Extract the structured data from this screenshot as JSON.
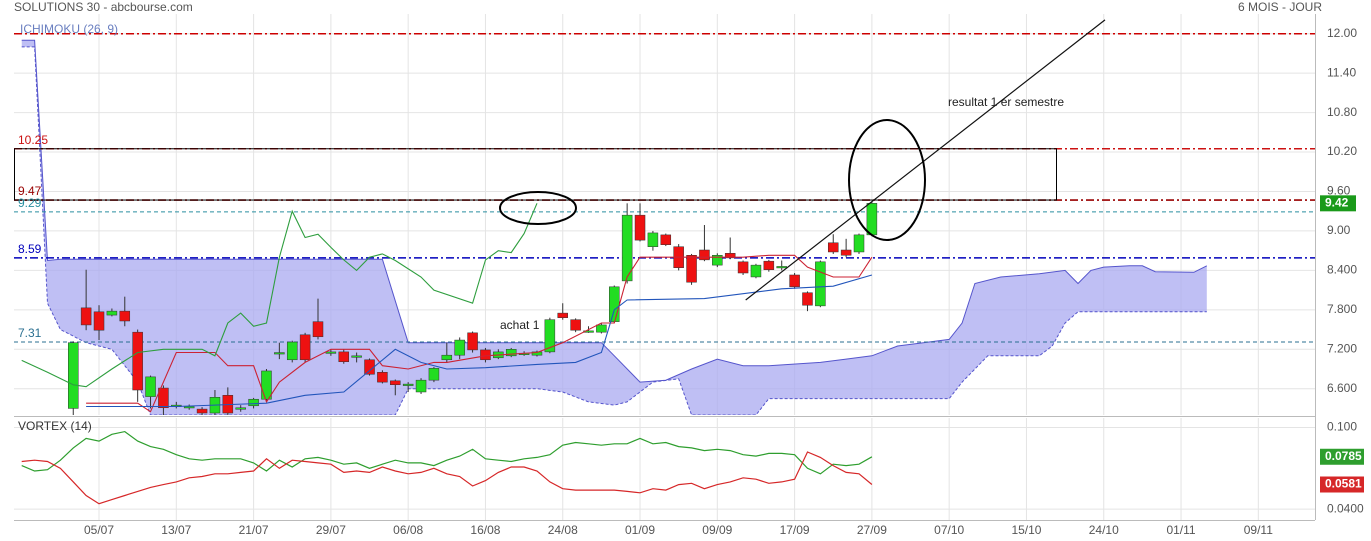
{
  "chart_data": [
    {
      "type": "candlestick",
      "title": "SOLUTIONS 30 - abcbourse.com",
      "subtitle": "6 MOIS - JOUR",
      "indicator": "ICHIMOKU (26, 9)",
      "xlim": [
        -0.6,
        100.4
      ],
      "ylim": [
        6.2,
        12.3
      ],
      "yticks": [
        {
          "value": 12,
          "label": "12.00"
        },
        {
          "value": 11.4,
          "label": "11.40"
        },
        {
          "value": 10.8,
          "label": "10.80"
        },
        {
          "value": 10.2,
          "label": "10.20"
        },
        {
          "value": 9.6,
          "label": "9.60"
        },
        {
          "value": 9,
          "label": "9.00"
        },
        {
          "value": 8.4,
          "label": "8.400"
        },
        {
          "value": 7.8,
          "label": "7.800"
        },
        {
          "value": 7.2,
          "label": "7.200"
        },
        {
          "value": 6.6,
          "label": "6.600"
        }
      ],
      "grid": true,
      "up_color": "#22dd22",
      "down_color": "#ee1111",
      "last_color": "#1a9a1a",
      "candles": {
        "x": [
          4,
          5,
          6,
          7,
          8,
          9,
          10,
          11,
          12,
          13,
          14,
          15,
          16,
          17,
          18,
          19,
          20,
          21,
          22,
          23,
          24,
          25,
          26,
          27,
          28,
          29,
          30,
          31,
          32,
          33,
          34,
          35,
          36,
          37,
          38,
          39,
          40,
          41,
          42,
          43,
          44,
          45,
          46,
          47,
          48,
          49,
          50,
          51,
          52,
          53,
          54,
          55,
          56,
          57,
          58,
          59,
          60,
          61,
          62,
          63,
          64,
          65,
          66
        ],
        "open": [
          6.3,
          7.83,
          7.77,
          7.72,
          7.78,
          7.46,
          6.48,
          6.61,
          6.33,
          6.32,
          6.29,
          6.23,
          6.5,
          6.3,
          6.34,
          6.44,
          7.14,
          7.04,
          7.42,
          7.62,
          7.15,
          7.16,
          7.08,
          7.04,
          6.85,
          6.72,
          6.66,
          6.55,
          6.73,
          7.04,
          7.11,
          7.45,
          7.19,
          7.07,
          7.1,
          7.13,
          7.11,
          7.16,
          7.75,
          7.65,
          7.47,
          7.46,
          7.62,
          8.24,
          9.24,
          8.76,
          8.94,
          8.76,
          8.63,
          8.71,
          8.48,
          8.66,
          8.53,
          8.3,
          8.54,
          8.45,
          8.33,
          8.06,
          7.86,
          8.82,
          8.71,
          8.68,
          8.94
        ],
        "high": [
          7.32,
          8.41,
          7.87,
          7.82,
          8.0,
          7.5,
          6.8,
          6.65,
          6.4,
          6.36,
          6.32,
          6.58,
          6.62,
          6.35,
          6.46,
          6.9,
          7.3,
          7.33,
          7.45,
          7.97,
          7.2,
          7.2,
          7.15,
          7.06,
          6.88,
          6.74,
          6.7,
          6.76,
          6.93,
          7.3,
          7.38,
          7.47,
          7.22,
          7.2,
          7.22,
          7.17,
          7.18,
          7.68,
          7.9,
          7.67,
          7.55,
          7.6,
          8.17,
          9.42,
          9.42,
          9.0,
          8.96,
          8.8,
          8.65,
          9.09,
          8.66,
          8.9,
          8.55,
          8.5,
          8.56,
          8.55,
          8.36,
          8.08,
          8.55,
          8.95,
          8.88,
          8.96,
          9.44
        ],
        "low": [
          6.2,
          7.49,
          7.34,
          7.7,
          7.55,
          6.4,
          6.3,
          6.2,
          6.3,
          6.28,
          6.2,
          6.2,
          6.2,
          6.25,
          6.3,
          6.4,
          7.05,
          7.0,
          7.0,
          7.35,
          7.1,
          6.98,
          7.0,
          6.8,
          6.68,
          6.5,
          6.55,
          6.52,
          6.7,
          7.0,
          7.05,
          7.15,
          7.0,
          7.05,
          7.08,
          7.1,
          7.09,
          7.14,
          7.65,
          7.46,
          7.45,
          7.44,
          7.6,
          8.2,
          8.84,
          8.7,
          8.77,
          8.4,
          8.18,
          8.54,
          8.45,
          8.57,
          8.33,
          8.28,
          8.38,
          8.4,
          8.12,
          7.78,
          7.84,
          8.65,
          8.6,
          8.65,
          8.92
        ],
        "close": [
          7.3,
          7.57,
          7.49,
          7.78,
          7.63,
          6.58,
          6.78,
          6.31,
          6.35,
          6.33,
          6.23,
          6.47,
          6.23,
          6.31,
          6.44,
          6.87,
          7.15,
          7.31,
          7.04,
          7.39,
          7.16,
          7.01,
          7.1,
          6.82,
          6.7,
          6.66,
          6.67,
          6.73,
          6.91,
          7.11,
          7.34,
          7.19,
          7.04,
          7.16,
          7.2,
          7.14,
          7.16,
          7.65,
          7.68,
          7.49,
          7.48,
          7.57,
          8.15,
          9.24,
          8.86,
          8.97,
          8.79,
          8.44,
          8.22,
          8.56,
          8.63,
          8.59,
          8.36,
          8.48,
          8.41,
          8.46,
          8.15,
          7.87,
          8.53,
          8.68,
          8.63,
          8.94,
          9.42
        ]
      },
      "cloud_color": "#aaaaf0",
      "series": [
        {
          "color": "#5555cc",
          "x": [
            0,
            1,
            2,
            3,
            28,
            30,
            45,
            46,
            48,
            50,
            52,
            54,
            56,
            58,
            62,
            64,
            66,
            68,
            70,
            72,
            73,
            74,
            76,
            79,
            81,
            82,
            83,
            84,
            86,
            87,
            88,
            91,
            92
          ],
          "values": [
            11.9,
            11.9,
            8.55,
            8.57,
            8.57,
            7.3,
            7.3,
            7.1,
            6.7,
            6.73,
            6.9,
            7.05,
            6.95,
            6.95,
            7.0,
            7.05,
            7.1,
            7.25,
            7.3,
            7.35,
            7.6,
            8.2,
            8.3,
            8.35,
            8.4,
            8.2,
            8.4,
            8.45,
            8.47,
            8.47,
            8.38,
            8.37,
            8.47
          ]
        },
        {
          "color": "#5555cc",
          "x": [
            0,
            1,
            2,
            3,
            5,
            7,
            9,
            10,
            29,
            30,
            40,
            42,
            44,
            46,
            47,
            49,
            51,
            52,
            57,
            58,
            72,
            73,
            74,
            75,
            79,
            80,
            81,
            82,
            92
          ],
          "values": [
            11.8,
            11.8,
            7.9,
            7.5,
            7.3,
            7.2,
            6.7,
            6.2,
            6.2,
            6.6,
            6.6,
            6.55,
            6.4,
            6.35,
            6.4,
            6.7,
            6.75,
            6.2,
            6.2,
            6.45,
            6.45,
            6.7,
            6.9,
            7.1,
            7.1,
            7.25,
            7.6,
            7.77,
            7.77
          ]
        },
        {
          "color": "#cc2233",
          "x": [
            5,
            9,
            10,
            12,
            15,
            16,
            18,
            19,
            20,
            22,
            24,
            27,
            28,
            30,
            32,
            33,
            36,
            40,
            42,
            45,
            46,
            47,
            48,
            53,
            56,
            58,
            60,
            61,
            63,
            65,
            66
          ],
          "values": [
            6.38,
            6.38,
            6.25,
            7.15,
            7.15,
            6.95,
            6.95,
            6.4,
            6.7,
            7.0,
            7.2,
            7.2,
            6.95,
            6.9,
            7.0,
            7.0,
            7.1,
            7.15,
            7.3,
            7.6,
            7.6,
            8.3,
            8.6,
            8.6,
            8.6,
            8.63,
            8.63,
            8.45,
            8.3,
            8.3,
            8.6
          ]
        },
        {
          "color": "#2255bb",
          "x": [
            5,
            12,
            19,
            22,
            25,
            29,
            31,
            33,
            36,
            40,
            43,
            45,
            46,
            47,
            53,
            59,
            63,
            66
          ],
          "values": [
            6.33,
            6.33,
            6.38,
            6.5,
            6.55,
            7.2,
            7.0,
            6.9,
            6.92,
            6.97,
            7.0,
            7.15,
            7.8,
            7.95,
            7.97,
            8.12,
            8.16,
            8.33
          ]
        },
        {
          "color": "#2e9e3e",
          "x": [
            0,
            2,
            4,
            5,
            7,
            9,
            11,
            14,
            15,
            16,
            17,
            18,
            19,
            20,
            21,
            22,
            23,
            24,
            25,
            26,
            27,
            28,
            29,
            31,
            32,
            35,
            36,
            37,
            38,
            39,
            40
          ],
          "values": [
            7.03,
            6.85,
            6.66,
            6.63,
            6.9,
            7.15,
            7.2,
            7.2,
            7.1,
            7.6,
            7.75,
            7.55,
            7.6,
            8.6,
            9.3,
            8.9,
            8.95,
            8.75,
            8.56,
            8.4,
            8.6,
            8.65,
            8.55,
            8.3,
            8.1,
            7.9,
            8.56,
            8.7,
            8.67,
            8.96,
            9.42
          ]
        }
      ],
      "ceiling": {
        "value": 12,
        "color": "#cc0000"
      },
      "levels": [
        {
          "value": 10.25,
          "color": "#cc1111",
          "style": "dashdot"
        },
        {
          "value": 9.47,
          "color": "#990000",
          "style": "dashdot"
        },
        {
          "value": 9.29,
          "color": "#2a8fa0",
          "style": "dashed"
        },
        {
          "value": 8.59,
          "color": "#0000bb",
          "style": "dashdot"
        },
        {
          "value": 7.31,
          "color": "#2a6f90",
          "style": "dashed"
        }
      ],
      "trendline": {
        "color": "#111111",
        "x": [
          56.2,
          84.1
        ],
        "values": [
          7.95,
          12.21
        ]
      },
      "annotations": [
        "achat 1",
        "resultat 1 er semestre"
      ]
    },
    {
      "type": "line",
      "title": "VORTEX (14)",
      "xlim": [
        -0.6,
        100.4
      ],
      "ylim": [
        0.032,
        0.107
      ],
      "yticks": [
        {
          "value": 0.1,
          "label": "0.100"
        },
        {
          "value": 0.04,
          "label": "0.0400"
        }
      ],
      "xticks": [
        {
          "value": 6,
          "label": "05/07"
        },
        {
          "value": 12,
          "label": "13/07"
        },
        {
          "value": 18,
          "label": "21/07"
        },
        {
          "value": 24,
          "label": "29/07"
        },
        {
          "value": 30,
          "label": "06/08"
        },
        {
          "value": 36,
          "label": "16/08"
        },
        {
          "value": 42,
          "label": "24/08"
        },
        {
          "value": 48,
          "label": "01/09"
        },
        {
          "value": 54,
          "label": "09/09"
        },
        {
          "value": 60,
          "label": "17/09"
        },
        {
          "value": 66,
          "label": "27/09"
        },
        {
          "value": 72,
          "label": "07/10"
        },
        {
          "value": 78,
          "label": "15/10"
        },
        {
          "value": 84,
          "label": "24/10"
        },
        {
          "value": 90,
          "label": "01/11"
        },
        {
          "value": 96,
          "label": "09/11"
        }
      ],
      "grid": true,
      "series": [
        {
          "color": "#2e9e2e",
          "x": [
            0,
            1,
            2,
            3,
            4,
            5,
            6,
            7,
            8,
            9,
            10,
            11,
            12,
            13,
            14,
            15,
            16,
            17,
            18,
            19,
            20,
            21,
            22,
            23,
            24,
            25,
            26,
            27,
            28,
            29,
            30,
            31,
            32,
            33,
            34,
            35,
            36,
            37,
            38,
            39,
            40,
            41,
            42,
            43,
            44,
            45,
            46,
            47,
            48,
            49,
            50,
            51,
            52,
            53,
            54,
            55,
            56,
            57,
            58,
            59,
            60,
            61,
            62,
            63,
            64,
            65,
            66
          ],
          "values": [
            0.072,
            0.068,
            0.069,
            0.076,
            0.085,
            0.092,
            0.09,
            0.095,
            0.097,
            0.09,
            0.086,
            0.084,
            0.08,
            0.077,
            0.076,
            0.077,
            0.077,
            0.077,
            0.074,
            0.068,
            0.076,
            0.071,
            0.077,
            0.078,
            0.076,
            0.073,
            0.074,
            0.07,
            0.073,
            0.076,
            0.074,
            0.074,
            0.072,
            0.076,
            0.079,
            0.084,
            0.077,
            0.076,
            0.075,
            0.077,
            0.078,
            0.08,
            0.087,
            0.089,
            0.088,
            0.087,
            0.088,
            0.088,
            0.092,
            0.088,
            0.089,
            0.086,
            0.085,
            0.083,
            0.084,
            0.083,
            0.08,
            0.079,
            0.081,
            0.081,
            0.08,
            0.07,
            0.066,
            0.073,
            0.072,
            0.073,
            0.0785
          ]
        },
        {
          "color": "#d62728",
          "x": [
            0,
            1,
            2,
            3,
            4,
            5,
            6,
            7,
            8,
            9,
            10,
            11,
            12,
            13,
            14,
            15,
            16,
            17,
            18,
            19,
            20,
            21,
            22,
            23,
            24,
            25,
            26,
            27,
            28,
            29,
            30,
            31,
            32,
            33,
            34,
            35,
            36,
            37,
            38,
            39,
            40,
            41,
            42,
            43,
            44,
            45,
            46,
            47,
            48,
            49,
            50,
            51,
            52,
            53,
            54,
            55,
            56,
            57,
            58,
            59,
            60,
            61,
            62,
            63,
            64,
            65,
            66
          ],
          "values": [
            0.075,
            0.076,
            0.075,
            0.07,
            0.06,
            0.05,
            0.044,
            0.047,
            0.05,
            0.053,
            0.056,
            0.058,
            0.06,
            0.063,
            0.064,
            0.066,
            0.066,
            0.067,
            0.068,
            0.077,
            0.07,
            0.076,
            0.075,
            0.074,
            0.073,
            0.067,
            0.068,
            0.067,
            0.071,
            0.068,
            0.066,
            0.067,
            0.07,
            0.066,
            0.064,
            0.057,
            0.061,
            0.067,
            0.071,
            0.071,
            0.068,
            0.06,
            0.055,
            0.054,
            0.054,
            0.054,
            0.054,
            0.053,
            0.052,
            0.055,
            0.054,
            0.058,
            0.059,
            0.055,
            0.058,
            0.06,
            0.063,
            0.062,
            0.059,
            0.06,
            0.062,
            0.082,
            0.078,
            0.072,
            0.067,
            0.066,
            0.0581
          ]
        }
      ]
    }
  ]
}
